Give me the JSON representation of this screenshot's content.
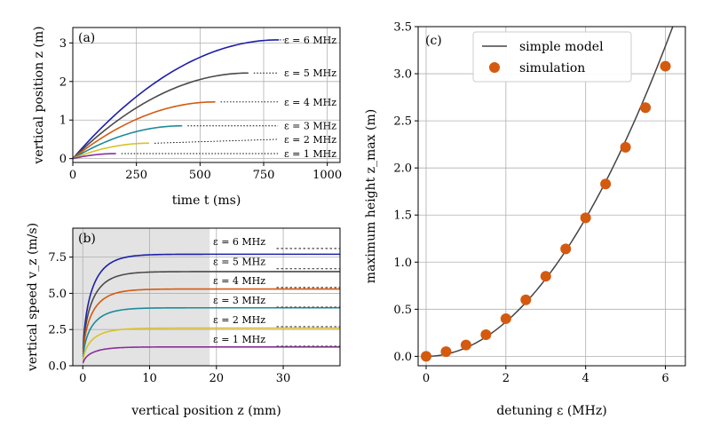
{
  "chart_data": [
    {
      "id": "a",
      "type": "line",
      "panel_label": "(a)",
      "xlabel": "time t (ms)",
      "ylabel": "vertical position z (m)",
      "xlim": [
        0,
        1050
      ],
      "ylim": [
        -0.1,
        3.4
      ],
      "xticks": [
        "0",
        "250",
        "500",
        "750",
        "1000"
      ],
      "yticks": [
        "0",
        "1",
        "2",
        "3"
      ],
      "grid": true,
      "series": [
        {
          "name": "ε = 6 MHz",
          "label": "ε = 6 MHz",
          "color": "#1f1fa8",
          "t_end": 810,
          "z_max": 3.08,
          "annot_y": 3.08
        },
        {
          "name": "ε = 5 MHz",
          "label": "ε = 5 MHz",
          "color": "#4a4a4a",
          "t_end": 690,
          "z_max": 2.22,
          "annot_y": 2.22
        },
        {
          "name": "ε = 4 MHz",
          "label": "ε = 4 MHz",
          "color": "#d45a10",
          "t_end": 560,
          "z_max": 1.47,
          "annot_y": 1.47
        },
        {
          "name": "ε = 3 MHz",
          "label": "ε = 3 MHz",
          "color": "#1f8a9a",
          "t_end": 430,
          "z_max": 0.85,
          "annot_y": 0.85
        },
        {
          "name": "ε = 2 MHz",
          "label": "ε = 2 MHz",
          "color": "#d9c22a",
          "t_end": 300,
          "z_max": 0.4,
          "annot_y": 0.5
        },
        {
          "name": "ε = 1 MHz",
          "label": "ε = 1 MHz",
          "color": "#8b2f9a",
          "t_end": 170,
          "z_max": 0.13,
          "annot_y": 0.13
        }
      ]
    },
    {
      "id": "b",
      "type": "line",
      "panel_label": "(b)",
      "xlabel": "vertical position z (mm)",
      "ylabel": "vertical speed v_z (m/s)",
      "xlim": [
        -1.5,
        38.5
      ],
      "ylim": [
        0,
        9.5
      ],
      "xticks": [
        "0",
        "10",
        "20",
        "30"
      ],
      "yticks": [
        "0.0",
        "2.5",
        "5.0",
        "7.5"
      ],
      "grid": true,
      "shaded_region": [
        -1.5,
        19
      ],
      "series": [
        {
          "name": "ε = 6 MHz",
          "label": "ε = 6 MHz",
          "color": "#1f1fa8",
          "v_terminal": 7.7,
          "dashed_level": 8.1
        },
        {
          "name": "ε = 5 MHz",
          "label": "ε = 5 MHz",
          "color": "#4a4a4a",
          "v_terminal": 6.5,
          "dashed_level": 6.7
        },
        {
          "name": "ε = 4 MHz",
          "label": "ε = 4 MHz",
          "color": "#d45a10",
          "v_terminal": 5.3,
          "dashed_level": 5.4
        },
        {
          "name": "ε = 3 MHz",
          "label": "ε = 3 MHz",
          "color": "#1f8a9a",
          "v_terminal": 4.0,
          "dashed_level": 4.05
        },
        {
          "name": "ε = 2 MHz",
          "label": "ε = 2 MHz",
          "color": "#d9c22a",
          "v_terminal": 2.6,
          "dashed_level": 2.7
        },
        {
          "name": "ε = 1 MHz",
          "label": "ε = 1 MHz",
          "color": "#8b2f9a",
          "v_terminal": 1.3,
          "dashed_level": 1.35
        }
      ]
    },
    {
      "id": "c",
      "type": "scatter",
      "panel_label": "(c)",
      "xlabel": "detuning ε (MHz)",
      "ylabel": "maximum height z_max (m)",
      "xlim": [
        -0.2,
        6.5
      ],
      "ylim": [
        -0.1,
        3.5
      ],
      "xticks": [
        "0",
        "2",
        "4",
        "6"
      ],
      "yticks": [
        "0.0",
        "0.5",
        "1.0",
        "1.5",
        "2.0",
        "2.5",
        "3.0",
        "3.5"
      ],
      "grid": true,
      "legend": {
        "position": "top-right",
        "entries": [
          "simple model",
          "simulation"
        ]
      },
      "model": {
        "name": "simple model",
        "color": "#444444",
        "coef": 0.0915,
        "power": 2
      },
      "points": {
        "name": "simulation",
        "color": "#d45a10",
        "x": [
          0,
          0.5,
          1.0,
          1.5,
          2.0,
          2.5,
          3.0,
          3.5,
          4.0,
          4.5,
          5.0,
          5.5,
          6.0
        ],
        "y": [
          0.0,
          0.05,
          0.12,
          0.23,
          0.4,
          0.6,
          0.85,
          1.14,
          1.47,
          1.83,
          2.22,
          2.64,
          3.08
        ]
      }
    }
  ]
}
